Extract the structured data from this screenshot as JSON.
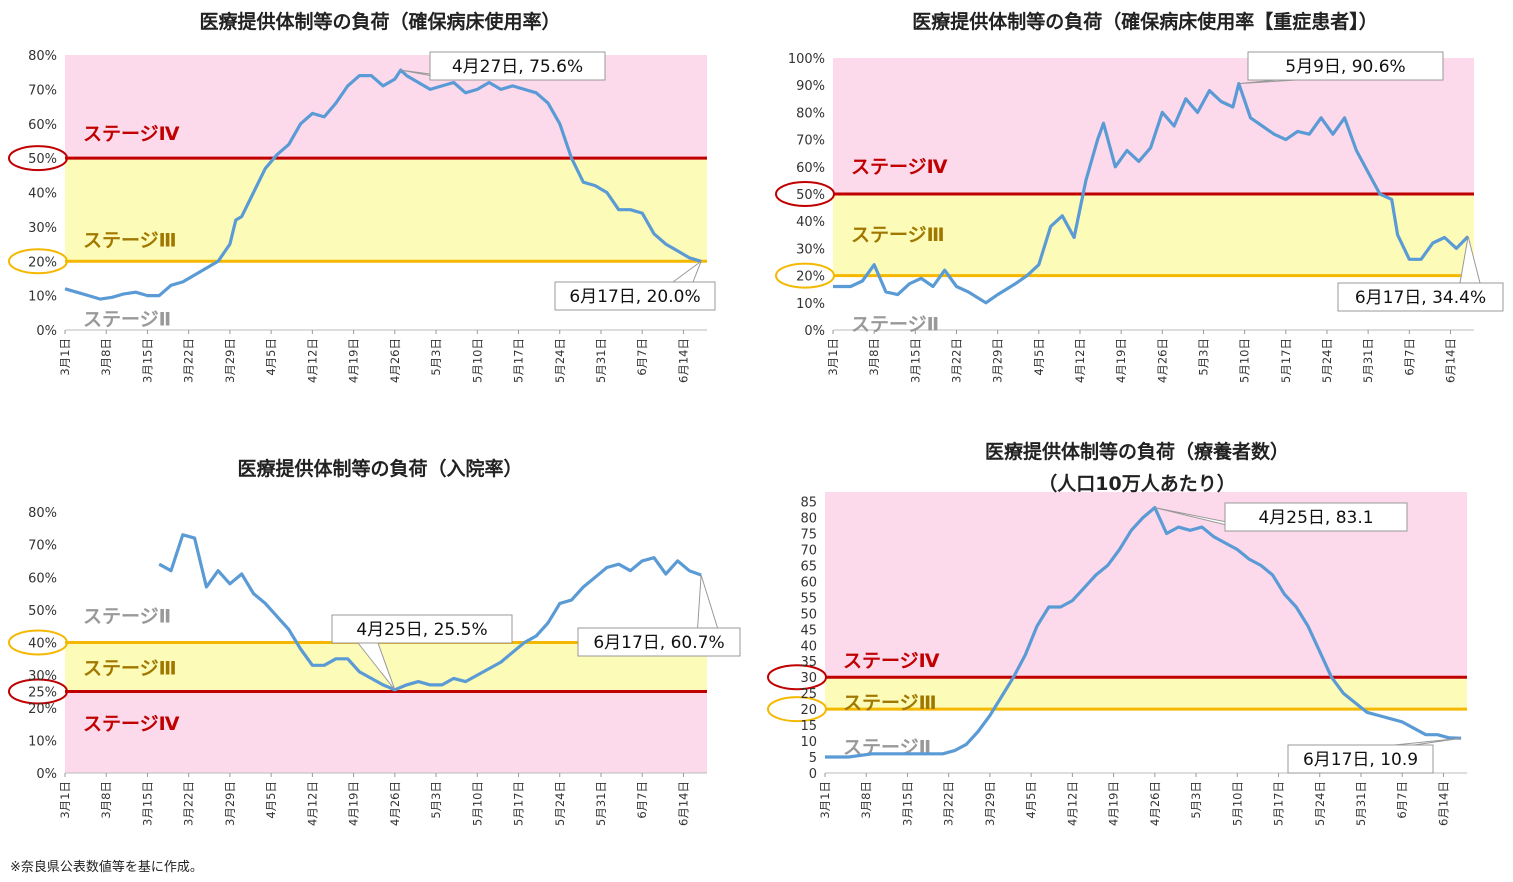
{
  "colors": {
    "pink": "#fdd9ec",
    "yellow": "#fdfbb8",
    "red": "#c00000",
    "orange": "#f5b800",
    "line": "#5b9bd5",
    "gray": "#999999"
  },
  "footnote": "※奈良県公表数値等を基に作成。",
  "chart_data": [
    {
      "type": "line",
      "title": "医療提供体制等の負荷（確保病床使用率）",
      "yticks": [
        "0%",
        "10%",
        "20%",
        "30%",
        "40%",
        "50%",
        "60%",
        "70%",
        "80%"
      ],
      "ylim": [
        0,
        80
      ],
      "xticks": [
        "3月1日",
        "3月8日",
        "3月15日",
        "3月22日",
        "3月29日",
        "4月5日",
        "4月12日",
        "4月19日",
        "4月26日",
        "5月3日",
        "5月10日",
        "5月17日",
        "5月24日",
        "5月31日",
        "6月7日",
        "6月14日"
      ],
      "xlim": [
        0,
        109
      ],
      "thresholds": [
        {
          "value": 50,
          "label": "50%",
          "color": "red"
        },
        {
          "value": 20,
          "label": "20%",
          "color": "orange"
        }
      ],
      "stages": [
        {
          "label": "ステージⅣ",
          "y": 57
        },
        {
          "label": "ステージⅢ",
          "y": 26
        },
        {
          "label": "ステージⅡ",
          "y": 3
        }
      ],
      "callouts": [
        {
          "text": "4月27日, 75.6%",
          "x": 57,
          "y": 75.6
        },
        {
          "text": "6月17日, 20.0%",
          "x": 108,
          "y": 20.0
        }
      ],
      "points": [
        [
          0,
          12
        ],
        [
          2,
          11
        ],
        [
          4,
          10
        ],
        [
          6,
          9
        ],
        [
          8,
          9.5
        ],
        [
          10,
          10.5
        ],
        [
          12,
          11
        ],
        [
          14,
          10
        ],
        [
          16,
          10
        ],
        [
          18,
          13
        ],
        [
          20,
          14
        ],
        [
          22,
          16
        ],
        [
          24,
          18
        ],
        [
          26,
          20
        ],
        [
          28,
          25
        ],
        [
          29,
          32
        ],
        [
          30,
          33
        ],
        [
          32,
          40
        ],
        [
          34,
          47
        ],
        [
          36,
          51
        ],
        [
          38,
          54
        ],
        [
          40,
          60
        ],
        [
          42,
          63
        ],
        [
          44,
          62
        ],
        [
          46,
          66
        ],
        [
          48,
          71
        ],
        [
          50,
          74
        ],
        [
          52,
          74
        ],
        [
          54,
          71
        ],
        [
          56,
          73
        ],
        [
          57,
          75.6
        ],
        [
          58,
          74
        ],
        [
          60,
          72
        ],
        [
          62,
          70
        ],
        [
          64,
          71
        ],
        [
          66,
          72
        ],
        [
          68,
          69
        ],
        [
          70,
          70
        ],
        [
          72,
          72
        ],
        [
          74,
          70
        ],
        [
          76,
          71
        ],
        [
          78,
          70
        ],
        [
          80,
          69
        ],
        [
          82,
          66
        ],
        [
          84,
          60
        ],
        [
          86,
          50
        ],
        [
          88,
          43
        ],
        [
          90,
          42
        ],
        [
          92,
          40
        ],
        [
          94,
          35
        ],
        [
          96,
          35
        ],
        [
          98,
          34
        ],
        [
          100,
          28
        ],
        [
          102,
          25
        ],
        [
          104,
          23
        ],
        [
          106,
          21
        ],
        [
          108,
          20
        ]
      ]
    },
    {
      "type": "line",
      "title": "医療提供体制等の負荷（確保病床使用率【重症患者】）",
      "yticks": [
        "0%",
        "10%",
        "20%",
        "30%",
        "40%",
        "50%",
        "60%",
        "70%",
        "80%",
        "90%",
        "100%"
      ],
      "ylim": [
        0,
        100
      ],
      "xticks": [
        "3月1日",
        "3月8日",
        "3月15日",
        "3月22日",
        "3月29日",
        "4月5日",
        "4月12日",
        "4月19日",
        "4月26日",
        "5月3日",
        "5月10日",
        "5月17日",
        "5月24日",
        "5月31日",
        "6月7日",
        "6月14日"
      ],
      "xlim": [
        0,
        109
      ],
      "thresholds": [
        {
          "value": 50,
          "label": "50%",
          "color": "red"
        },
        {
          "value": 20,
          "label": "20%",
          "color": "orange"
        }
      ],
      "stages": [
        {
          "label": "ステージⅣ",
          "y": 60
        },
        {
          "label": "ステージⅢ",
          "y": 35
        },
        {
          "label": "ステージⅡ",
          "y": 2
        }
      ],
      "callouts": [
        {
          "text": "5月9日, 90.6%",
          "x": 69,
          "y": 90.6
        },
        {
          "text": "6月17日, 34.4%",
          "x": 108,
          "y": 34.4
        }
      ],
      "points": [
        [
          0,
          16
        ],
        [
          3,
          16
        ],
        [
          5,
          18
        ],
        [
          7,
          24
        ],
        [
          9,
          14
        ],
        [
          11,
          13
        ],
        [
          13,
          17
        ],
        [
          15,
          19
        ],
        [
          17,
          16
        ],
        [
          19,
          22
        ],
        [
          21,
          16
        ],
        [
          23,
          14
        ],
        [
          26,
          10
        ],
        [
          28,
          13
        ],
        [
          31,
          17
        ],
        [
          33,
          20
        ],
        [
          35,
          24
        ],
        [
          37,
          38
        ],
        [
          39,
          42
        ],
        [
          41,
          34
        ],
        [
          43,
          55
        ],
        [
          45,
          70
        ],
        [
          46,
          76
        ],
        [
          48,
          60
        ],
        [
          50,
          66
        ],
        [
          52,
          62
        ],
        [
          54,
          67
        ],
        [
          56,
          80
        ],
        [
          58,
          75
        ],
        [
          60,
          85
        ],
        [
          62,
          80
        ],
        [
          64,
          88
        ],
        [
          66,
          84
        ],
        [
          68,
          82
        ],
        [
          69,
          90.6
        ],
        [
          71,
          78
        ],
        [
          73,
          75
        ],
        [
          75,
          72
        ],
        [
          77,
          70
        ],
        [
          79,
          73
        ],
        [
          81,
          72
        ],
        [
          83,
          78
        ],
        [
          85,
          72
        ],
        [
          87,
          78
        ],
        [
          89,
          66
        ],
        [
          91,
          58
        ],
        [
          93,
          50
        ],
        [
          95,
          48
        ],
        [
          96,
          35
        ],
        [
          98,
          26
        ],
        [
          100,
          26
        ],
        [
          102,
          32
        ],
        [
          104,
          34
        ],
        [
          106,
          30
        ],
        [
          108,
          34.4
        ]
      ]
    },
    {
      "type": "line",
      "title": "医療提供体制等の負荷（入院率）",
      "yticks": [
        "0%",
        "10%",
        "20%",
        "25%",
        "30%",
        "40%",
        "50%",
        "60%",
        "70%",
        "80%"
      ],
      "ylim": [
        0,
        80
      ],
      "xticks": [
        "3月1日",
        "3月8日",
        "3月15日",
        "3月22日",
        "3月29日",
        "4月5日",
        "4月12日",
        "4月19日",
        "4月26日",
        "5月3日",
        "5月10日",
        "5月17日",
        "5月24日",
        "5月31日",
        "6月7日",
        "6月14日"
      ],
      "xlim": [
        0,
        109
      ],
      "thresholds": [
        {
          "value": 40,
          "label": "40%",
          "color": "orange"
        },
        {
          "value": 25,
          "label": "25%",
          "color": "red"
        }
      ],
      "stages": [
        {
          "label": "ステージⅡ",
          "y": 48
        },
        {
          "label": "ステージⅢ",
          "y": 32
        },
        {
          "label": "ステージⅣ",
          "y": 15
        }
      ],
      "callouts": [
        {
          "text": "4月25日, 25.5%",
          "x": 56,
          "y": 25.5
        },
        {
          "text": "6月17日, 60.7%",
          "x": 108,
          "y": 60.7
        }
      ],
      "points": [
        [
          16,
          64
        ],
        [
          18,
          62
        ],
        [
          20,
          73
        ],
        [
          22,
          72
        ],
        [
          24,
          57
        ],
        [
          26,
          62
        ],
        [
          28,
          58
        ],
        [
          30,
          61
        ],
        [
          32,
          55
        ],
        [
          34,
          52
        ],
        [
          36,
          48
        ],
        [
          38,
          44
        ],
        [
          40,
          38
        ],
        [
          42,
          33
        ],
        [
          44,
          33
        ],
        [
          46,
          35
        ],
        [
          48,
          35
        ],
        [
          50,
          31
        ],
        [
          52,
          29
        ],
        [
          54,
          27
        ],
        [
          56,
          25.5
        ],
        [
          58,
          27
        ],
        [
          60,
          28
        ],
        [
          62,
          27
        ],
        [
          64,
          27
        ],
        [
          66,
          29
        ],
        [
          68,
          28
        ],
        [
          70,
          30
        ],
        [
          72,
          32
        ],
        [
          74,
          34
        ],
        [
          76,
          37
        ],
        [
          78,
          40
        ],
        [
          80,
          42
        ],
        [
          82,
          46
        ],
        [
          84,
          52
        ],
        [
          86,
          53
        ],
        [
          88,
          57
        ],
        [
          90,
          60
        ],
        [
          92,
          63
        ],
        [
          94,
          64
        ],
        [
          96,
          62
        ],
        [
          98,
          65
        ],
        [
          100,
          66
        ],
        [
          102,
          61
        ],
        [
          104,
          65
        ],
        [
          106,
          62
        ],
        [
          108,
          60.7
        ]
      ]
    },
    {
      "type": "line",
      "title": "医療提供体制等の負荷（療養者数）",
      "subtitle": "（人口10万人あたり）",
      "yticks": [
        "0",
        "5",
        "10",
        "15",
        "20",
        "25",
        "30",
        "35",
        "40",
        "45",
        "50",
        "55",
        "60",
        "65",
        "70",
        "75",
        "80",
        "85"
      ],
      "ylim": [
        0,
        88
      ],
      "xticks": [
        "3月1日",
        "3月8日",
        "3月15日",
        "3月22日",
        "3月29日",
        "4月5日",
        "4月12日",
        "4月19日",
        "4月26日",
        "5月3日",
        "5月10日",
        "5月17日",
        "5月24日",
        "5月31日",
        "6月7日",
        "6月14日"
      ],
      "xlim": [
        0,
        109
      ],
      "thresholds": [
        {
          "value": 30,
          "label": "30",
          "color": "red"
        },
        {
          "value": 20,
          "label": "20",
          "color": "orange"
        }
      ],
      "stages": [
        {
          "label": "ステージⅣ",
          "y": 35
        },
        {
          "label": "ステージⅢ",
          "y": 22
        },
        {
          "label": "ステージⅡ",
          "y": 8
        }
      ],
      "callouts": [
        {
          "text": "4月25日, 83.1",
          "x": 56,
          "y": 83.1
        },
        {
          "text": "6月17日, 10.9",
          "x": 108,
          "y": 10.9
        }
      ],
      "points": [
        [
          0,
          5
        ],
        [
          4,
          5
        ],
        [
          8,
          6
        ],
        [
          12,
          6
        ],
        [
          16,
          6
        ],
        [
          20,
          6
        ],
        [
          22,
          7
        ],
        [
          24,
          9
        ],
        [
          26,
          13
        ],
        [
          28,
          18
        ],
        [
          30,
          24
        ],
        [
          32,
          30
        ],
        [
          34,
          37
        ],
        [
          36,
          46
        ],
        [
          38,
          52
        ],
        [
          40,
          52
        ],
        [
          42,
          54
        ],
        [
          44,
          58
        ],
        [
          46,
          62
        ],
        [
          48,
          65
        ],
        [
          50,
          70
        ],
        [
          52,
          76
        ],
        [
          54,
          80
        ],
        [
          56,
          83.1
        ],
        [
          58,
          75
        ],
        [
          60,
          77
        ],
        [
          62,
          76
        ],
        [
          64,
          77
        ],
        [
          66,
          74
        ],
        [
          68,
          72
        ],
        [
          70,
          70
        ],
        [
          72,
          67
        ],
        [
          74,
          65
        ],
        [
          76,
          62
        ],
        [
          78,
          56
        ],
        [
          80,
          52
        ],
        [
          82,
          46
        ],
        [
          84,
          38
        ],
        [
          86,
          30
        ],
        [
          88,
          25
        ],
        [
          90,
          22
        ],
        [
          92,
          19
        ],
        [
          94,
          18
        ],
        [
          96,
          17
        ],
        [
          98,
          16
        ],
        [
          100,
          14
        ],
        [
          102,
          12
        ],
        [
          104,
          12
        ],
        [
          106,
          11
        ],
        [
          108,
          10.9
        ]
      ]
    }
  ]
}
